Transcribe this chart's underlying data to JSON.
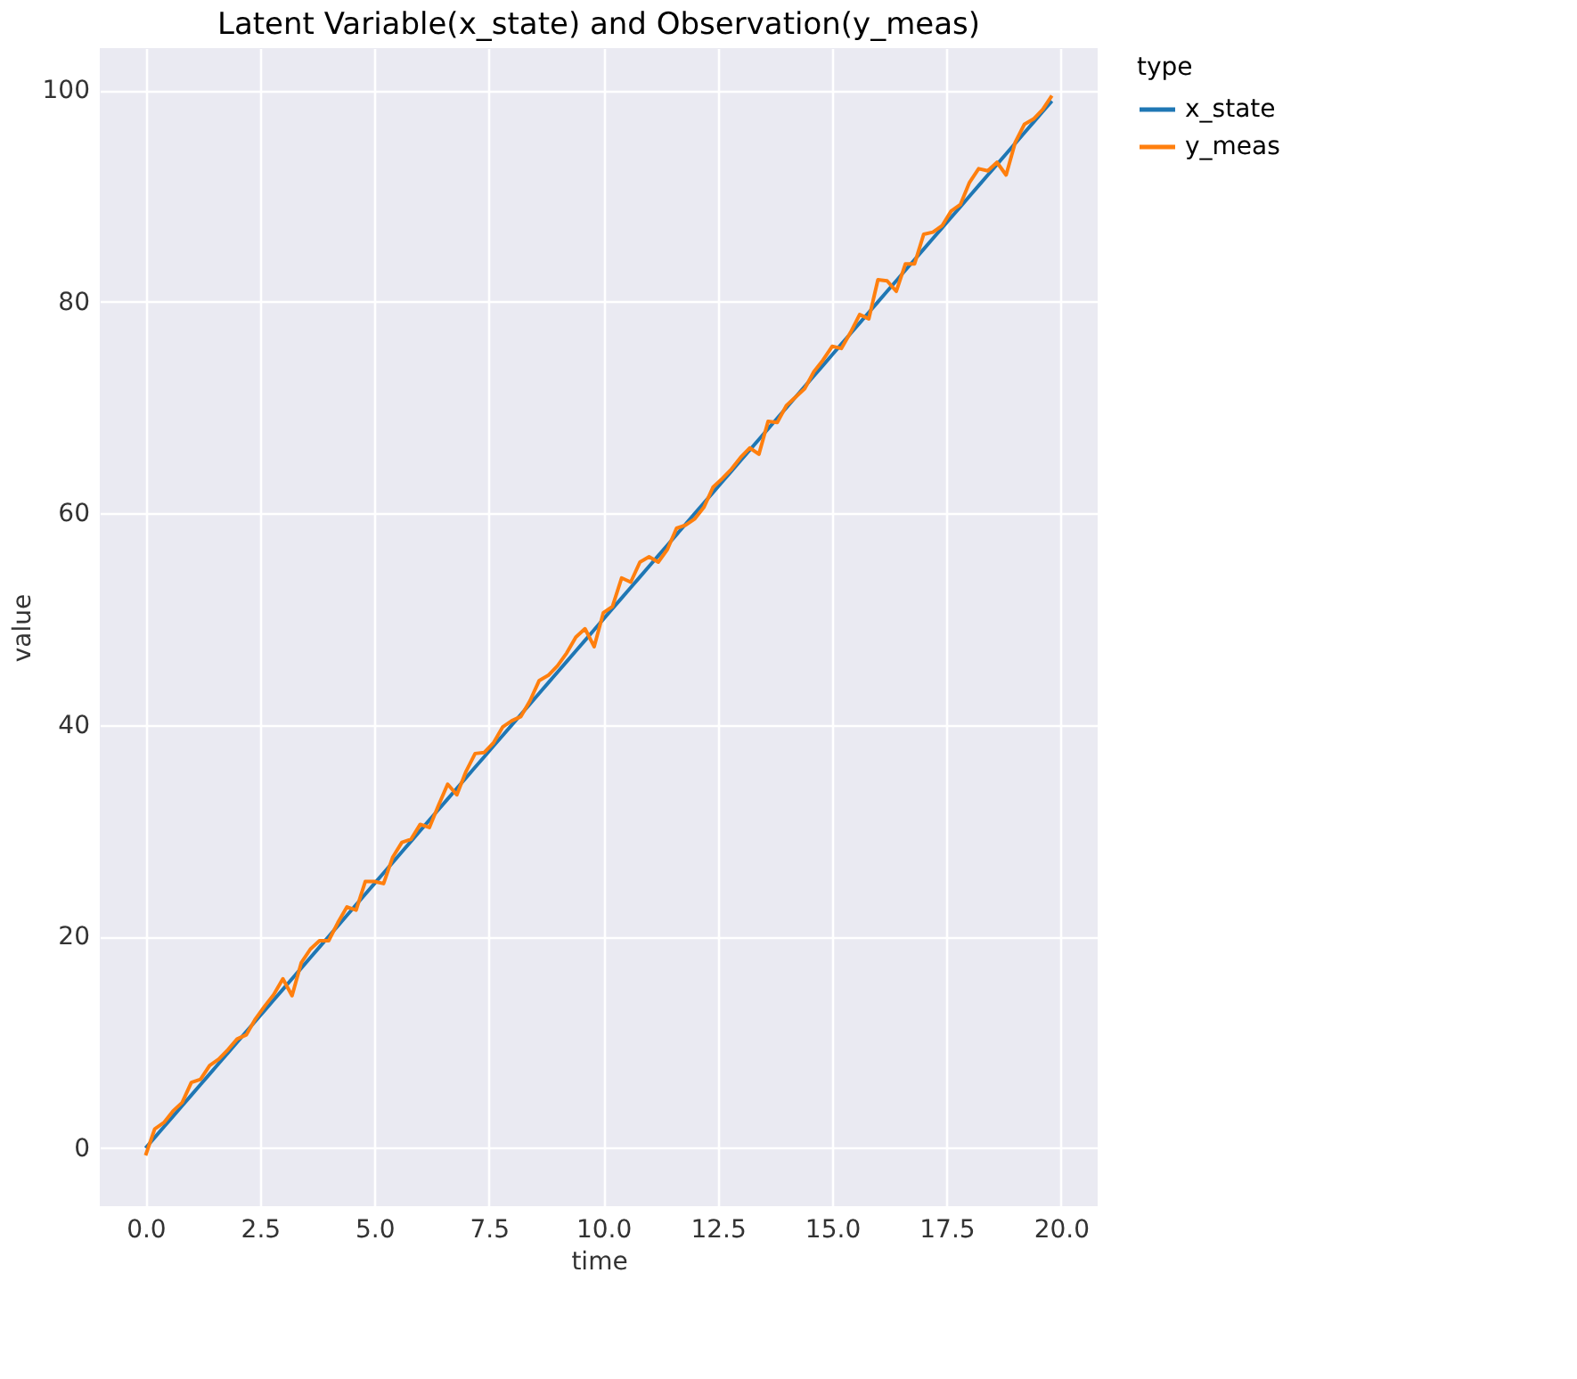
{
  "chart_data": {
    "type": "line",
    "title": "Latent Variable(x_state) and Observation(y_meas)",
    "xlabel": "time",
    "ylabel": "value",
    "legend_title": "type",
    "legend": "right",
    "grid": true,
    "line_style": "solid",
    "marker": "none",
    "x": [
      0,
      0.2,
      0.4,
      0.6,
      0.8,
      1.0,
      1.2,
      1.4,
      1.6,
      1.8,
      2.0,
      2.2,
      2.4,
      2.6,
      2.8,
      3.0,
      3.2,
      3.4,
      3.6,
      3.8,
      4.0,
      4.2,
      4.4,
      4.6,
      4.8,
      5.0,
      5.2,
      5.4,
      5.6,
      5.8,
      6.0,
      6.2,
      6.4,
      6.6,
      6.8,
      7.0,
      7.2,
      7.4,
      7.6,
      7.8,
      8.0,
      8.2,
      8.4,
      8.6,
      8.8,
      9.0,
      9.2,
      9.4,
      9.6,
      9.8,
      10.0,
      10.2,
      10.4,
      10.6,
      10.8,
      11.0,
      11.2,
      11.4,
      11.6,
      11.8,
      12.0,
      12.2,
      12.4,
      12.6,
      12.8,
      13.0,
      13.2,
      13.4,
      13.6,
      13.8,
      14.0,
      14.2,
      14.4,
      14.6,
      14.8,
      15.0,
      15.2,
      15.4,
      15.6,
      15.8,
      16.0,
      16.2,
      16.4,
      16.6,
      16.8,
      17.0,
      17.2,
      17.4,
      17.6,
      17.8,
      18.0,
      18.2,
      18.4,
      18.6,
      18.8,
      19.0,
      19.2,
      19.4,
      19.6,
      19.8
    ],
    "series": [
      {
        "name": "x_state",
        "color": "#1f77b4",
        "values": [
          0,
          1,
          2,
          3,
          4,
          5,
          6,
          7,
          8,
          9,
          10,
          11,
          12,
          13,
          14,
          15,
          16,
          17,
          18,
          19,
          20,
          21,
          22,
          23,
          24,
          25,
          26,
          27,
          28,
          29,
          30,
          31,
          32,
          33,
          34,
          35,
          36,
          37,
          38,
          39,
          40,
          41,
          42,
          43,
          44,
          45,
          46,
          47,
          48,
          49,
          50,
          51,
          52,
          53,
          54,
          55,
          56,
          57,
          58,
          59,
          60,
          61,
          62,
          63,
          64,
          65,
          66,
          67,
          68,
          69,
          70,
          71,
          72,
          73,
          74,
          75,
          76,
          77,
          78,
          79,
          80,
          81,
          82,
          83,
          84,
          85,
          86,
          87,
          88,
          89,
          90,
          91,
          92,
          93,
          94,
          95,
          96,
          97,
          98,
          99
        ]
      },
      {
        "name": "y_meas",
        "color": "#ff7f0e",
        "values": [
          -0.7,
          1.8,
          2.4,
          3.5,
          4.3,
          6.2,
          6.5,
          7.8,
          8.4,
          9.3,
          10.3,
          10.7,
          12.2,
          13.4,
          14.5,
          16.0,
          14.4,
          17.5,
          18.8,
          19.6,
          19.6,
          21.3,
          22.8,
          22.5,
          25.2,
          25.2,
          25.0,
          27.5,
          28.9,
          29.2,
          30.6,
          30.3,
          32.4,
          34.4,
          33.4,
          35.6,
          37.3,
          37.4,
          38.3,
          39.8,
          40.4,
          40.8,
          42.3,
          44.2,
          44.7,
          45.6,
          46.8,
          48.3,
          49.1,
          47.4,
          50.6,
          51.2,
          53.9,
          53.5,
          55.4,
          55.9,
          55.4,
          56.6,
          58.6,
          58.9,
          59.5,
          60.6,
          62.5,
          63.3,
          64.2,
          65.3,
          66.2,
          65.6,
          68.7,
          68.6,
          70.2,
          71.0,
          71.8,
          73.4,
          74.5,
          75.8,
          75.6,
          77.1,
          78.8,
          78.4,
          82.1,
          82.0,
          81.0,
          83.6,
          83.6,
          86.4,
          86.6,
          87.2,
          88.6,
          89.2,
          91.3,
          92.6,
          92.4,
          93.2,
          92.0,
          95.1,
          96.8,
          97.3,
          98.2,
          99.5
        ]
      }
    ],
    "xlim": [
      -1,
      20.8
    ],
    "ylim": [
      -5.5,
      104
    ],
    "xticks": [
      {
        "value": 0,
        "label": "0.0"
      },
      {
        "value": 2.5,
        "label": "2.5"
      },
      {
        "value": 5,
        "label": "5.0"
      },
      {
        "value": 7.5,
        "label": "7.5"
      },
      {
        "value": 10,
        "label": "10.0"
      },
      {
        "value": 12.5,
        "label": "12.5"
      },
      {
        "value": 15,
        "label": "15.0"
      },
      {
        "value": 17.5,
        "label": "17.5"
      },
      {
        "value": 20,
        "label": "20.0"
      }
    ],
    "yticks": [
      0,
      20,
      40,
      60,
      80,
      100
    ]
  }
}
